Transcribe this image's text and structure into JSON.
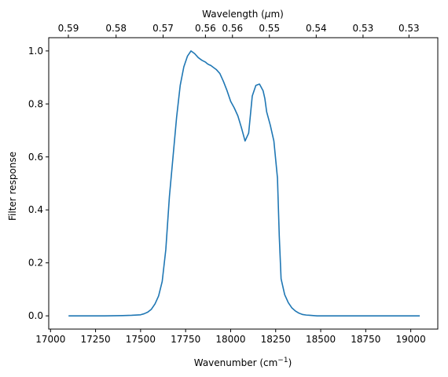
{
  "chart_data": {
    "type": "line",
    "xlabel": "Wavenumber (cm",
    "xlabel_sup": "−1",
    "xlabel_end": ")",
    "ylabel": "Filter response",
    "top_xlabel": "Wavelength (",
    "top_xlabel_mu": "μ",
    "top_xlabel_end": "m)",
    "xlim": [
      16990,
      19150
    ],
    "ylim": [
      -0.05,
      1.05
    ],
    "x_ticks": [
      {
        "value": 17000,
        "label": "17000"
      },
      {
        "value": 17250,
        "label": "17250"
      },
      {
        "value": 17500,
        "label": "17500"
      },
      {
        "value": 17750,
        "label": "17750"
      },
      {
        "value": 18000,
        "label": "18000"
      },
      {
        "value": 18250,
        "label": "18250"
      },
      {
        "value": 18500,
        "label": "18500"
      },
      {
        "value": 18750,
        "label": "18750"
      },
      {
        "value": 19000,
        "label": "19000"
      }
    ],
    "y_ticks": [
      {
        "value": 0.0,
        "label": "0.0"
      },
      {
        "value": 0.2,
        "label": "0.2"
      },
      {
        "value": 0.4,
        "label": "0.4"
      },
      {
        "value": 0.6,
        "label": "0.6"
      },
      {
        "value": 0.8,
        "label": "0.8"
      },
      {
        "value": 1.0,
        "label": "1.0"
      }
    ],
    "top_ticks": [
      {
        "value": 17099,
        "label": "0.59"
      },
      {
        "value": 17364,
        "label": "0.58"
      },
      {
        "value": 17625,
        "label": "0.57"
      },
      {
        "value": 17860,
        "label": "0.56"
      },
      {
        "value": 18010,
        "label": "0.56"
      },
      {
        "value": 18215,
        "label": "0.55"
      },
      {
        "value": 18475,
        "label": "0.54"
      },
      {
        "value": 18735,
        "label": "0.53"
      },
      {
        "value": 18990,
        "label": "0.53"
      }
    ],
    "series": [
      {
        "color": "#1f77b4",
        "x": [
          17100,
          17200,
          17300,
          17400,
          17450,
          17500,
          17520,
          17540,
          17560,
          17580,
          17600,
          17620,
          17640,
          17660,
          17680,
          17700,
          17720,
          17740,
          17760,
          17780,
          17800,
          17820,
          17840,
          17860,
          17870,
          17880,
          17890,
          17900,
          17920,
          17940,
          17960,
          17980,
          18000,
          18020,
          18040,
          18060,
          18080,
          18100,
          18120,
          18140,
          18160,
          18180,
          18190,
          18200,
          18220,
          18240,
          18260,
          18270,
          18280,
          18300,
          18320,
          18340,
          18360,
          18380,
          18400,
          18420,
          18440,
          18460,
          18480,
          18500,
          18520,
          18540,
          18560,
          18600,
          18650,
          18700,
          18800,
          18900,
          19000,
          19050
        ],
        "y": [
          0.0,
          0.0,
          0.0,
          0.001,
          0.002,
          0.004,
          0.008,
          0.014,
          0.025,
          0.045,
          0.075,
          0.13,
          0.25,
          0.45,
          0.6,
          0.75,
          0.87,
          0.94,
          0.98,
          1.0,
          0.99,
          0.975,
          0.965,
          0.958,
          0.952,
          0.948,
          0.945,
          0.94,
          0.93,
          0.915,
          0.885,
          0.85,
          0.81,
          0.785,
          0.755,
          0.71,
          0.66,
          0.69,
          0.83,
          0.87,
          0.875,
          0.85,
          0.82,
          0.77,
          0.72,
          0.66,
          0.52,
          0.3,
          0.14,
          0.08,
          0.05,
          0.03,
          0.018,
          0.01,
          0.005,
          0.003,
          0.002,
          0.001,
          0.0,
          0.0,
          0.0,
          0.0,
          0.0,
          0.0,
          0.0,
          0.0,
          0.0,
          0.0,
          0.0,
          0.0
        ]
      }
    ]
  }
}
